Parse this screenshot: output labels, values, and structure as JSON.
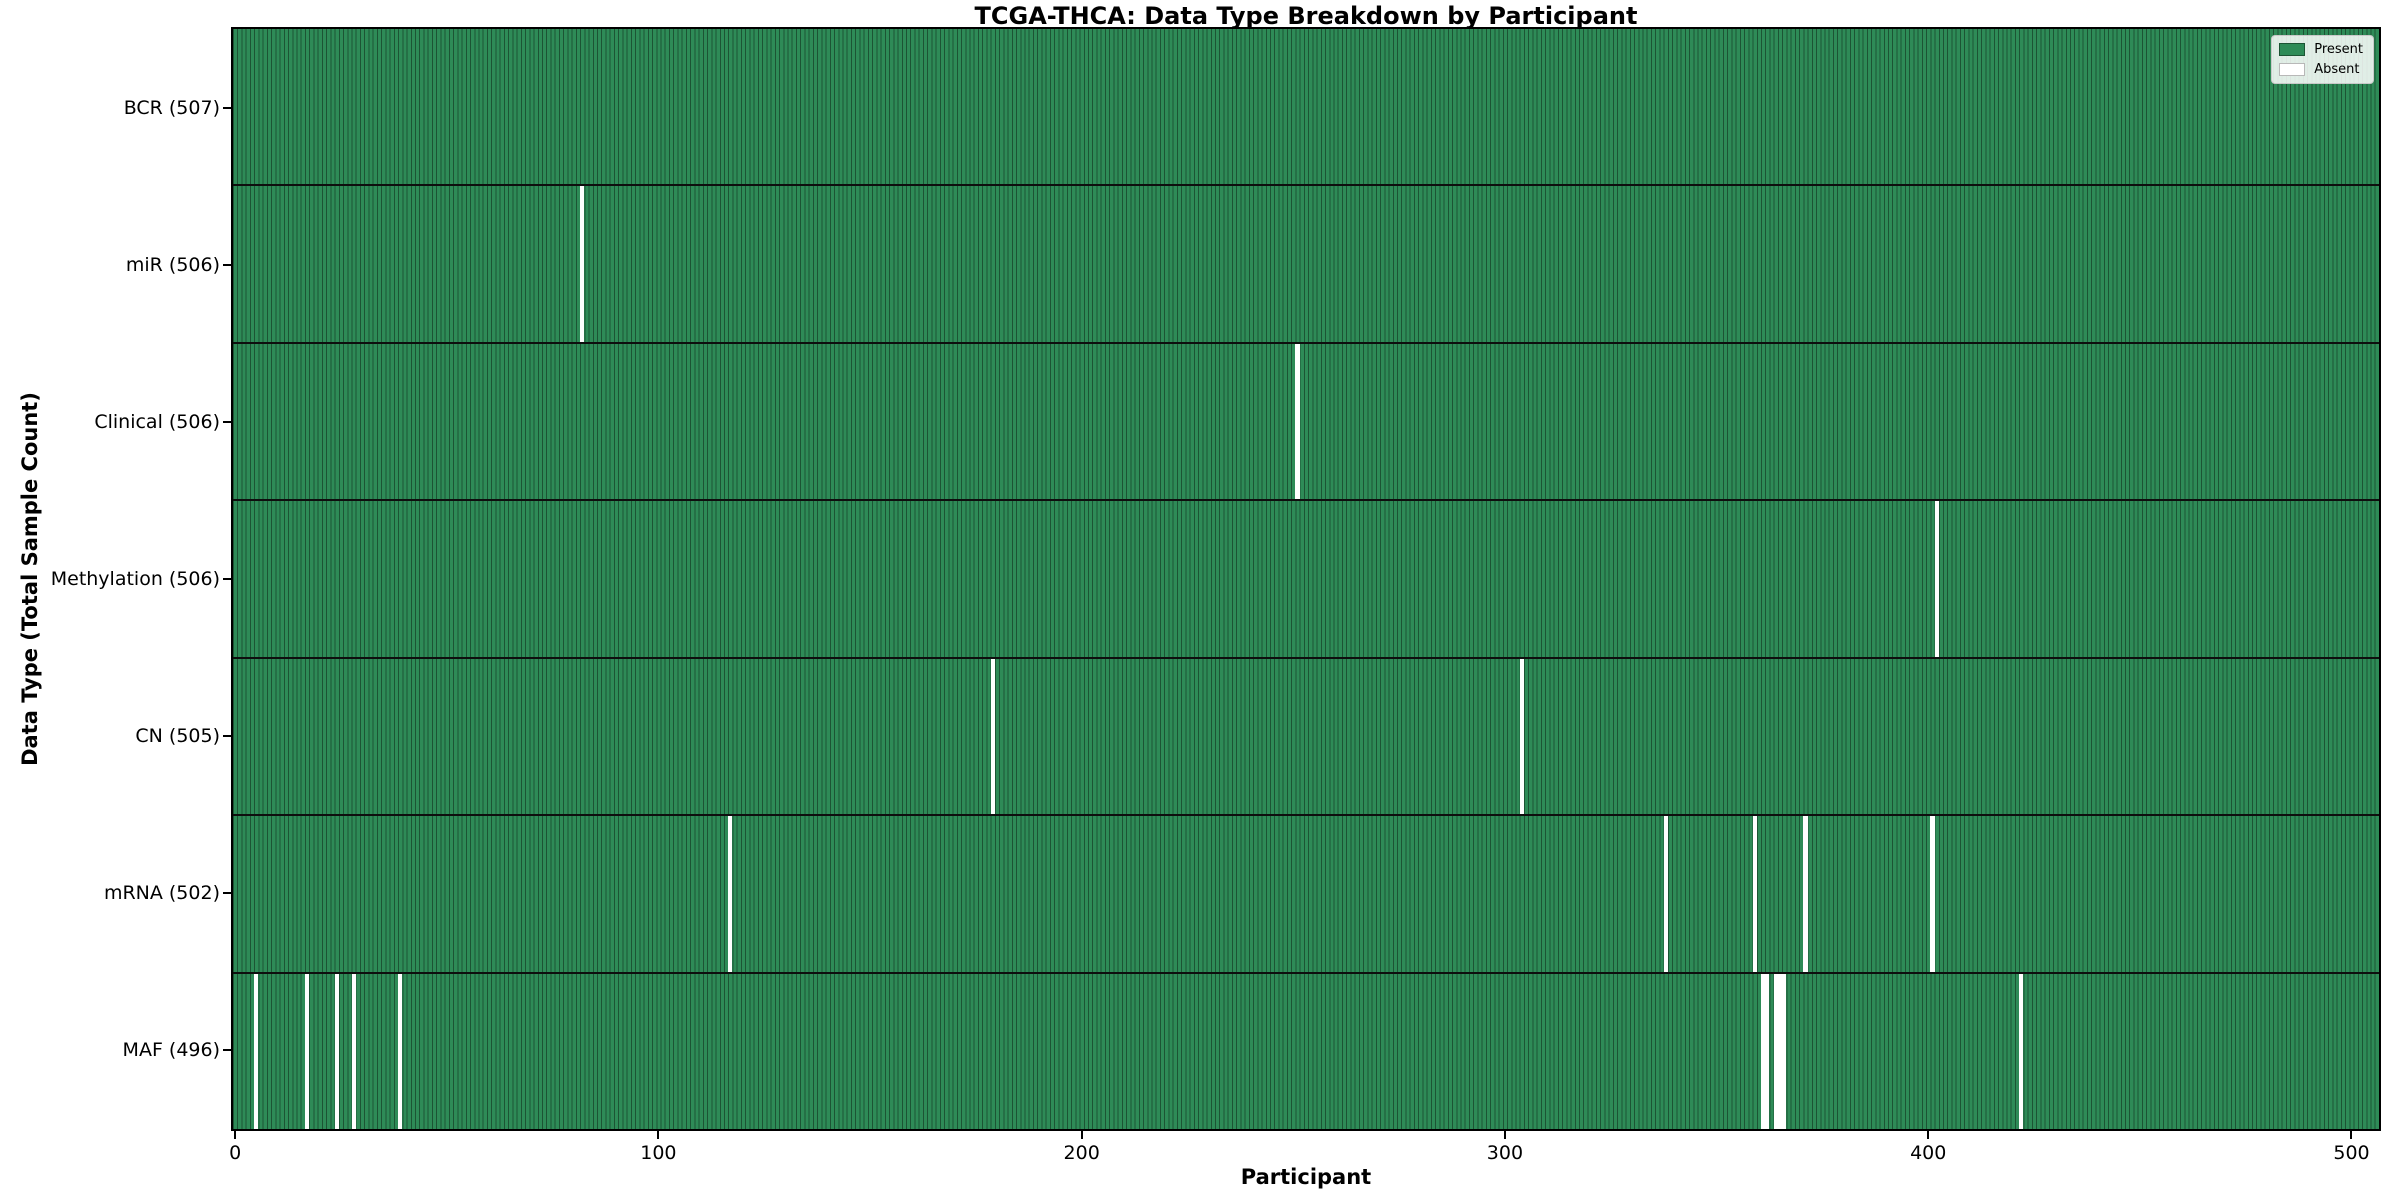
{
  "title": "TCGA-THCA: Data Type Breakdown by Participant",
  "chart_data": {
    "type": "heatmap",
    "title": "TCGA-THCA: Data Type Breakdown by Participant",
    "xlabel": "Participant",
    "ylabel": "Data Type (Total Sample Count)",
    "n_participants": 507,
    "x_ticks": [
      0,
      100,
      200,
      300,
      400,
      500
    ],
    "xlim": [
      -0.5,
      507.5
    ],
    "grid": false,
    "legend_position": "upper-right",
    "legend": [
      {
        "label": "Present",
        "color": "#2e8b57"
      },
      {
        "label": "Absent",
        "color": "#ffffff"
      }
    ],
    "colors": {
      "present": "#2e8b57",
      "bar_edge": "#1c5434",
      "absent": "#ffffff",
      "row_separator": "#0e0e0e"
    },
    "rows": [
      {
        "label": "BCR (507)",
        "name": "BCR",
        "present_count": 507,
        "absent_indices": []
      },
      {
        "label": "miR (506)",
        "name": "miR",
        "present_count": 506,
        "absent_indices": [
          82
        ]
      },
      {
        "label": "Clinical (506)",
        "name": "Clinical",
        "present_count": 506,
        "absent_indices": [
          251
        ]
      },
      {
        "label": "Methylation (506)",
        "name": "Methylation",
        "present_count": 506,
        "absent_indices": [
          402
        ]
      },
      {
        "label": "CN (505)",
        "name": "CN",
        "present_count": 505,
        "absent_indices": [
          179,
          304
        ]
      },
      {
        "label": "mRNA (502)",
        "name": "mRNA",
        "present_count": 502,
        "absent_indices": [
          117,
          338,
          359,
          371,
          401
        ]
      },
      {
        "label": "MAF (496)",
        "name": "MAF",
        "present_count": 496,
        "absent_indices": [
          5,
          17,
          24,
          28,
          39,
          361,
          362,
          364,
          365,
          366,
          422
        ]
      }
    ]
  }
}
